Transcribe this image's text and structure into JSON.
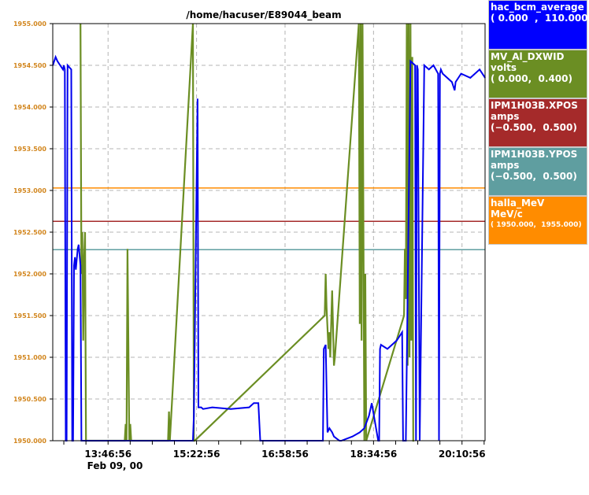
{
  "chart_data": {
    "type": "line",
    "title": "/home/hacuser/E89044_beam",
    "x_ticks": [
      "13:46:56",
      "15:22:56",
      "16:58:56",
      "18:34:56",
      "20:10:56"
    ],
    "x_date_label": "Feb 09, 00",
    "y_ticks": [
      "1950.000",
      "1950.500",
      "1951.000",
      "1951.500",
      "1952.000",
      "1952.500",
      "1953.000",
      "1953.500",
      "1954.000",
      "1954.500",
      "1955.000"
    ],
    "ylim": [
      1950.0,
      1955.0
    ],
    "grid": true,
    "legend_position": "right",
    "series": [
      {
        "name": "hac_bcm_average",
        "unit": "",
        "range": "( 0.000  ,  110.000)",
        "color": "#0000ee",
        "x": [
          "12:47",
          "12:50",
          "12:52",
          "12:55",
          "12:58",
          "12:59",
          "13:00",
          "13:01",
          "13:02",
          "13:03",
          "13:07",
          "13:08",
          "13:09",
          "13:10",
          "13:11",
          "13:12",
          "13:14",
          "13:15",
          "13:17",
          "13:18",
          "13:19",
          "13:20",
          "13:21",
          "13:22",
          "13:24",
          "13:25",
          "15:19",
          "15:20",
          "15:24",
          "15:25",
          "15:28",
          "15:30",
          "15:40",
          "16:00",
          "16:20",
          "16:25",
          "16:30",
          "16:32",
          "17:40",
          "17:41",
          "17:43",
          "17:45",
          "17:47",
          "17:50",
          "17:52",
          "17:58",
          "18:00",
          "18:12",
          "18:20",
          "18:25",
          "18:30",
          "18:33",
          "18:40",
          "18:41",
          "18:42",
          "18:43",
          "18:50",
          "19:00",
          "19:06",
          "19:07",
          "19:10",
          "19:15",
          "19:20",
          "19:21",
          "19:22",
          "19:23",
          "19:25",
          "19:30",
          "19:35",
          "19:40",
          "19:45",
          "19:46",
          "19:47",
          "19:48",
          "19:50",
          "20:00",
          "20:03",
          "20:04",
          "20:10",
          "20:20",
          "20:30",
          "20:36"
        ],
        "values": [
          1954.5,
          1954.6,
          1954.55,
          1954.5,
          1954.45,
          1954.5,
          1954.45,
          1950.0,
          1950.0,
          1954.5,
          1954.45,
          1950.0,
          1950.0,
          1952.1,
          1952.2,
          1952.05,
          1952.3,
          1952.35,
          1952.1,
          1950.0,
          1950.0,
          1950.0,
          1950.0,
          1950.0,
          1950.0,
          1950.0,
          1950.0,
          1950.3,
          1954.1,
          1950.4,
          1950.4,
          1950.38,
          1950.4,
          1950.38,
          1950.4,
          1950.45,
          1950.45,
          1950.0,
          1950.0,
          1951.1,
          1951.15,
          1950.1,
          1950.15,
          1950.1,
          1950.05,
          1950.0,
          1950.0,
          1950.05,
          1950.1,
          1950.15,
          1950.3,
          1950.45,
          1950.0,
          1950.0,
          1951.1,
          1951.15,
          1951.1,
          1951.2,
          1951.3,
          1950.0,
          1950.0,
          1954.55,
          1954.5,
          1950.0,
          1954.5,
          1954.45,
          1950.0,
          1954.5,
          1954.45,
          1954.5,
          1954.4,
          1950.0,
          1954.4,
          1954.45,
          1954.4,
          1954.3,
          1954.2,
          1954.3,
          1954.4,
          1954.35,
          1954.45,
          1954.35
        ]
      },
      {
        "name": "MV_Al_DXWID",
        "unit": "volts",
        "range": "( 0.000,  0.400)",
        "color": "#6b8e23",
        "x": [
          "13:17",
          "13:18",
          "13:19",
          "13:20",
          "13:21",
          "13:22",
          "13:23",
          "13:25",
          "14:05",
          "14:06",
          "14:07",
          "14:08",
          "14:10",
          "14:11",
          "14:12",
          "14:52",
          "14:53",
          "14:54",
          "15:19",
          "15:20",
          "15:21",
          "17:42",
          "17:43",
          "17:44",
          "17:46",
          "17:47",
          "17:48",
          "17:50",
          "17:52",
          "17:53",
          "18:19",
          "18:20",
          "18:21",
          "18:22",
          "18:23",
          "18:25",
          "18:26",
          "18:27",
          "19:08",
          "19:09",
          "19:10",
          "19:11",
          "19:12",
          "19:13",
          "19:14",
          "19:15",
          "19:16",
          "19:17",
          "19:18",
          "19:19"
        ],
        "values": [
          1955.0,
          1952.0,
          1952.5,
          1951.2,
          1952.2,
          1952.5,
          1950.0,
          1950.0,
          1950.0,
          1950.2,
          1950.0,
          1952.3,
          1950.0,
          1950.2,
          1950.0,
          1950.0,
          1950.35,
          1950.0,
          1955.0,
          1950.0,
          1950.0,
          1951.5,
          1952.0,
          1951.6,
          1951.1,
          1951.3,
          1951.0,
          1951.8,
          1950.9,
          1951.0,
          1955.0,
          1951.4,
          1955.0,
          1951.2,
          1955.0,
          1950.0,
          1952.0,
          1950.0,
          1951.5,
          1952.3,
          1951.7,
          1955.0,
          1950.9,
          1955.0,
          1951.0,
          1955.0,
          1951.2,
          1954.6,
          1950.0,
          1950.0
        ]
      },
      {
        "name": "IPM1H03B.XPOS",
        "unit": "amps",
        "range": "(−0.500,  0.500)",
        "color": "#a52a2a",
        "value": 1952.63
      },
      {
        "name": "IPM1H03B.YPOS",
        "unit": "amps",
        "range": "(−0.500,  0.500)",
        "color": "#5f9ea0",
        "value": 1952.29
      },
      {
        "name": "halla_MeV",
        "unit": "MeV/c",
        "range": "( 1950.000,  1955.000)",
        "color": "#ff8c00",
        "value": 1953.03
      }
    ]
  },
  "colors": {
    "tick_label": "#d2861e",
    "grid": "#b4b4b4",
    "axis": "#000000",
    "legend_bg_0": "#0000ff",
    "legend_bg_1": "#6b8e23",
    "legend_bg_2": "#a52a2a",
    "legend_bg_3": "#5f9ea0",
    "legend_bg_4": "#ff8c00"
  }
}
